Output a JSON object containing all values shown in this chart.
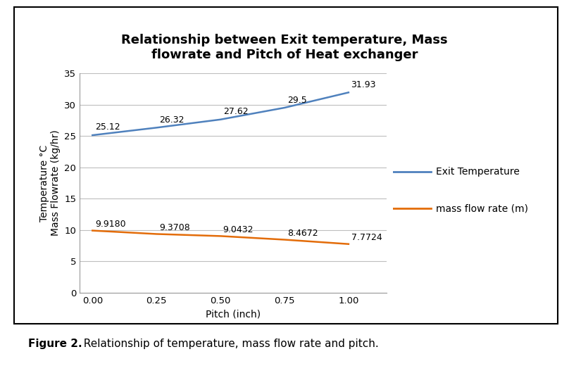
{
  "title": "Relationship between Exit temperature, Mass\nflowrate and Pitch of Heat exchanger",
  "xlabel": "Pitch (inch)",
  "ylabel": "Temperature °C\nMass Flowrate (kg/hr)",
  "pitch": [
    0,
    0.25,
    0.5,
    0.75,
    1.0
  ],
  "exit_temp": [
    25.12,
    26.32,
    27.62,
    29.5,
    31.93
  ],
  "mass_flow": [
    9.918,
    9.3708,
    9.0432,
    8.4672,
    7.7724
  ],
  "exit_temp_labels": [
    "25.12",
    "26.32",
    "27.62",
    "29.5",
    "31.93"
  ],
  "mass_flow_labels": [
    "9.9180",
    "9.3708",
    "9.0432",
    "8.4672",
    "7.7724"
  ],
  "exit_temp_color": "#4F81BD",
  "mass_flow_color": "#E36C09",
  "ylim": [
    0,
    35
  ],
  "yticks": [
    0,
    5,
    10,
    15,
    20,
    25,
    30,
    35
  ],
  "xlim": [
    -0.05,
    1.15
  ],
  "xticks": [
    0,
    0.25,
    0.5,
    0.75,
    1.0
  ],
  "legend_exit_temp": "Exit Temperature",
  "legend_mass_flow": "mass flow rate (m)",
  "background_color": "#ffffff",
  "grid_color": "#bebebe",
  "figure_caption_bold": "Figure 2.",
  "figure_caption_normal": "  Relationship of temperature, mass flow rate and pitch.",
  "title_fontsize": 13,
  "label_fontsize": 10,
  "tick_fontsize": 9.5,
  "annotation_fontsize": 9,
  "legend_fontsize": 10
}
